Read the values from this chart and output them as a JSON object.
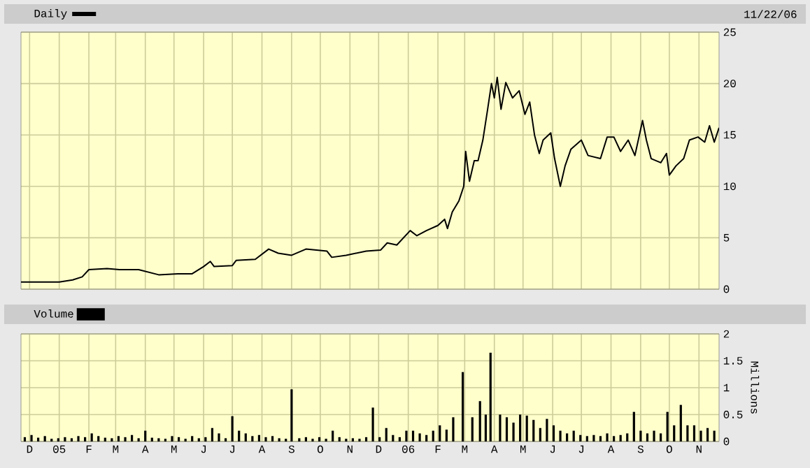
{
  "chart_data": [
    {
      "type": "line",
      "legend": "top left",
      "grid": true,
      "tick_labels": "y",
      "annotations": [
        "11/22/06"
      ],
      "xlim": [
        "2004-11-22",
        "2006-11-22"
      ],
      "ylim": [
        0,
        25
      ],
      "yticks": [
        0,
        5,
        10,
        15,
        20,
        25
      ],
      "xticks": [
        {
          "value": "2004-12-01",
          "label": null
        },
        {
          "value": "2005-01-01",
          "label": null
        },
        {
          "value": "2005-02-01",
          "label": null
        },
        {
          "value": "2005-03-01",
          "label": null
        },
        {
          "value": "2005-04-01",
          "label": null
        },
        {
          "value": "2005-05-01",
          "label": null
        },
        {
          "value": "2005-06-01",
          "label": null
        },
        {
          "value": "2005-07-01",
          "label": null
        },
        {
          "value": "2005-08-01",
          "label": null
        },
        {
          "value": "2005-09-01",
          "label": null
        },
        {
          "value": "2005-10-01",
          "label": null
        },
        {
          "value": "2005-11-01",
          "label": null
        },
        {
          "value": "2005-12-01",
          "label": null
        },
        {
          "value": "2006-01-01",
          "label": null
        },
        {
          "value": "2006-02-01",
          "label": null
        },
        {
          "value": "2006-03-01",
          "label": null
        },
        {
          "value": "2006-04-01",
          "label": null
        },
        {
          "value": "2006-05-01",
          "label": null
        },
        {
          "value": "2006-06-01",
          "label": null
        },
        {
          "value": "2006-07-01",
          "label": null
        },
        {
          "value": "2006-08-01",
          "label": null
        },
        {
          "value": "2006-09-01",
          "label": null
        },
        {
          "value": "2006-10-01",
          "label": null
        },
        {
          "value": "2006-11-01",
          "label": null
        }
      ],
      "series": [
        {
          "name": "Daily",
          "color": "#000000",
          "x": [
            "2004-11-22",
            "2005-01-01",
            "2005-01-15",
            "2005-01-25",
            "2005-02-01",
            "2005-02-20",
            "2005-03-05",
            "2005-03-25",
            "2005-04-15",
            "2005-05-05",
            "2005-05-20",
            "2005-06-01",
            "2005-06-08",
            "2005-06-12",
            "2005-07-01",
            "2005-07-05",
            "2005-07-25",
            "2005-08-08",
            "2005-08-18",
            "2005-09-01",
            "2005-09-16",
            "2005-10-08",
            "2005-10-13",
            "2005-10-28",
            "2005-11-18",
            "2005-12-03",
            "2005-12-10",
            "2005-12-20",
            "2006-01-03",
            "2006-01-10",
            "2006-01-20",
            "2006-02-01",
            "2006-02-08",
            "2006-02-11",
            "2006-02-16",
            "2006-02-23",
            "2006-02-28",
            "2006-03-02",
            "2006-03-06",
            "2006-03-11",
            "2006-03-15",
            "2006-03-20",
            "2006-03-25",
            "2006-03-29",
            "2006-04-01",
            "2006-04-04",
            "2006-04-08",
            "2006-04-13",
            "2006-04-20",
            "2006-04-27",
            "2006-05-03",
            "2006-05-08",
            "2006-05-13",
            "2006-05-18",
            "2006-05-22",
            "2006-05-30",
            "2006-06-03",
            "2006-06-09",
            "2006-06-14",
            "2006-06-20",
            "2006-07-01",
            "2006-07-08",
            "2006-07-21",
            "2006-07-28",
            "2006-08-04",
            "2006-08-11",
            "2006-08-19",
            "2006-08-26",
            "2006-09-03",
            "2006-09-07",
            "2006-09-12",
            "2006-09-22",
            "2006-09-28",
            "2006-10-01",
            "2006-10-08",
            "2006-10-16",
            "2006-10-22",
            "2006-10-31",
            "2006-11-07",
            "2006-11-12",
            "2006-11-17",
            "2006-11-22"
          ],
          "values": [
            0.7,
            0.7,
            0.9,
            1.2,
            1.9,
            2.0,
            1.9,
            1.9,
            1.4,
            1.5,
            1.5,
            2.2,
            2.7,
            2.2,
            2.3,
            2.8,
            2.9,
            3.9,
            3.5,
            3.3,
            3.9,
            3.7,
            3.1,
            3.3,
            3.7,
            3.8,
            4.5,
            4.3,
            5.7,
            5.2,
            5.7,
            6.2,
            6.8,
            5.9,
            7.5,
            8.6,
            10.0,
            13.4,
            10.5,
            12.5,
            12.5,
            14.5,
            17.5,
            20.0,
            18.6,
            20.6,
            17.5,
            20.1,
            18.6,
            19.3,
            17.0,
            18.2,
            15.0,
            13.2,
            14.5,
            15.2,
            12.7,
            10.0,
            12.0,
            13.6,
            14.5,
            13.0,
            12.7,
            14.8,
            14.8,
            13.4,
            14.5,
            13.0,
            16.4,
            14.5,
            12.7,
            12.3,
            13.2,
            11.1,
            12.0,
            12.7,
            14.5,
            14.8,
            14.3,
            15.9,
            14.3,
            15.7
          ]
        }
      ]
    },
    {
      "type": "bar",
      "legend": "top left",
      "grid": true,
      "ylabel": "Millions",
      "xlim": [
        "2004-11-22",
        "2006-11-22"
      ],
      "ylim": [
        0,
        2
      ],
      "yticks": [
        0,
        0.5,
        1,
        1.5,
        2
      ],
      "xticks": [
        {
          "value": "2004-12-01",
          "label": "D"
        },
        {
          "value": "2005-01-01",
          "label": "05"
        },
        {
          "value": "2005-02-01",
          "label": "F"
        },
        {
          "value": "2005-03-01",
          "label": "M"
        },
        {
          "value": "2005-04-01",
          "label": "A"
        },
        {
          "value": "2005-05-01",
          "label": "M"
        },
        {
          "value": "2005-06-01",
          "label": "J"
        },
        {
          "value": "2005-07-01",
          "label": "J"
        },
        {
          "value": "2005-08-01",
          "label": "A"
        },
        {
          "value": "2005-09-01",
          "label": "S"
        },
        {
          "value": "2005-10-01",
          "label": "O"
        },
        {
          "value": "2005-11-01",
          "label": "N"
        },
        {
          "value": "2005-12-01",
          "label": "D"
        },
        {
          "value": "2006-01-01",
          "label": "06"
        },
        {
          "value": "2006-02-01",
          "label": "F"
        },
        {
          "value": "2006-03-01",
          "label": "M"
        },
        {
          "value": "2006-04-01",
          "label": "A"
        },
        {
          "value": "2006-05-01",
          "label": "M"
        },
        {
          "value": "2006-06-01",
          "label": "J"
        },
        {
          "value": "2006-07-01",
          "label": "J"
        },
        {
          "value": "2006-08-01",
          "label": "A"
        },
        {
          "value": "2006-09-01",
          "label": "S"
        },
        {
          "value": "2006-10-01",
          "label": "O"
        },
        {
          "value": "2006-11-01",
          "label": "N"
        }
      ],
      "series": [
        {
          "name": "Volume",
          "color": "#000000",
          "x": [
            "2004-11-26",
            "2004-12-03",
            "2004-12-10",
            "2004-12-17",
            "2004-12-24",
            "2004-12-31",
            "2005-01-07",
            "2005-01-14",
            "2005-01-21",
            "2005-01-28",
            "2005-02-04",
            "2005-02-11",
            "2005-02-18",
            "2005-02-25",
            "2005-03-04",
            "2005-03-11",
            "2005-03-18",
            "2005-03-25",
            "2005-04-01",
            "2005-04-08",
            "2005-04-15",
            "2005-04-22",
            "2005-04-29",
            "2005-05-06",
            "2005-05-13",
            "2005-05-20",
            "2005-05-27",
            "2005-06-03",
            "2005-06-10",
            "2005-06-17",
            "2005-06-24",
            "2005-07-01",
            "2005-07-08",
            "2005-07-15",
            "2005-07-22",
            "2005-07-29",
            "2005-08-05",
            "2005-08-12",
            "2005-08-19",
            "2005-08-26",
            "2005-09-01",
            "2005-09-09",
            "2005-09-16",
            "2005-09-23",
            "2005-09-30",
            "2005-10-07",
            "2005-10-14",
            "2005-10-21",
            "2005-10-28",
            "2005-11-04",
            "2005-11-11",
            "2005-11-18",
            "2005-11-25",
            "2005-12-02",
            "2005-12-09",
            "2005-12-16",
            "2005-12-23",
            "2005-12-30",
            "2006-01-06",
            "2006-01-13",
            "2006-01-20",
            "2006-01-27",
            "2006-02-03",
            "2006-02-10",
            "2006-02-17",
            "2006-02-27",
            "2006-03-09",
            "2006-03-17",
            "2006-03-23",
            "2006-03-28",
            "2006-04-07",
            "2006-04-14",
            "2006-04-21",
            "2006-04-28",
            "2006-05-05",
            "2006-05-12",
            "2006-05-19",
            "2006-05-26",
            "2006-06-02",
            "2006-06-09",
            "2006-06-16",
            "2006-06-23",
            "2006-06-30",
            "2006-07-07",
            "2006-07-14",
            "2006-07-21",
            "2006-07-28",
            "2006-08-04",
            "2006-08-11",
            "2006-08-18",
            "2006-08-25",
            "2006-09-01",
            "2006-09-08",
            "2006-09-15",
            "2006-09-22",
            "2006-09-29",
            "2006-10-06",
            "2006-10-13",
            "2006-10-20",
            "2006-10-27",
            "2006-11-03",
            "2006-11-10",
            "2006-11-17"
          ],
          "values": [
            0.08,
            0.12,
            0.07,
            0.1,
            0.05,
            0.06,
            0.08,
            0.06,
            0.1,
            0.08,
            0.15,
            0.1,
            0.07,
            0.06,
            0.1,
            0.08,
            0.12,
            0.06,
            0.2,
            0.07,
            0.06,
            0.05,
            0.1,
            0.08,
            0.05,
            0.1,
            0.06,
            0.08,
            0.25,
            0.15,
            0.06,
            0.47,
            0.2,
            0.15,
            0.1,
            0.12,
            0.08,
            0.1,
            0.06,
            0.05,
            0.97,
            0.06,
            0.08,
            0.05,
            0.08,
            0.05,
            0.2,
            0.08,
            0.05,
            0.06,
            0.05,
            0.08,
            0.63,
            0.08,
            0.25,
            0.12,
            0.08,
            0.2,
            0.2,
            0.15,
            0.12,
            0.2,
            0.3,
            0.22,
            0.45,
            1.29,
            0.45,
            0.75,
            0.5,
            1.65,
            0.5,
            0.45,
            0.35,
            0.5,
            0.48,
            0.4,
            0.25,
            0.42,
            0.3,
            0.2,
            0.15,
            0.2,
            0.12,
            0.1,
            0.12,
            0.1,
            0.15,
            0.1,
            0.12,
            0.15,
            0.55,
            0.2,
            0.15,
            0.2,
            0.15,
            0.55,
            0.3,
            0.68,
            0.3,
            0.3,
            0.2,
            0.25,
            0.2
          ]
        }
      ]
    }
  ]
}
